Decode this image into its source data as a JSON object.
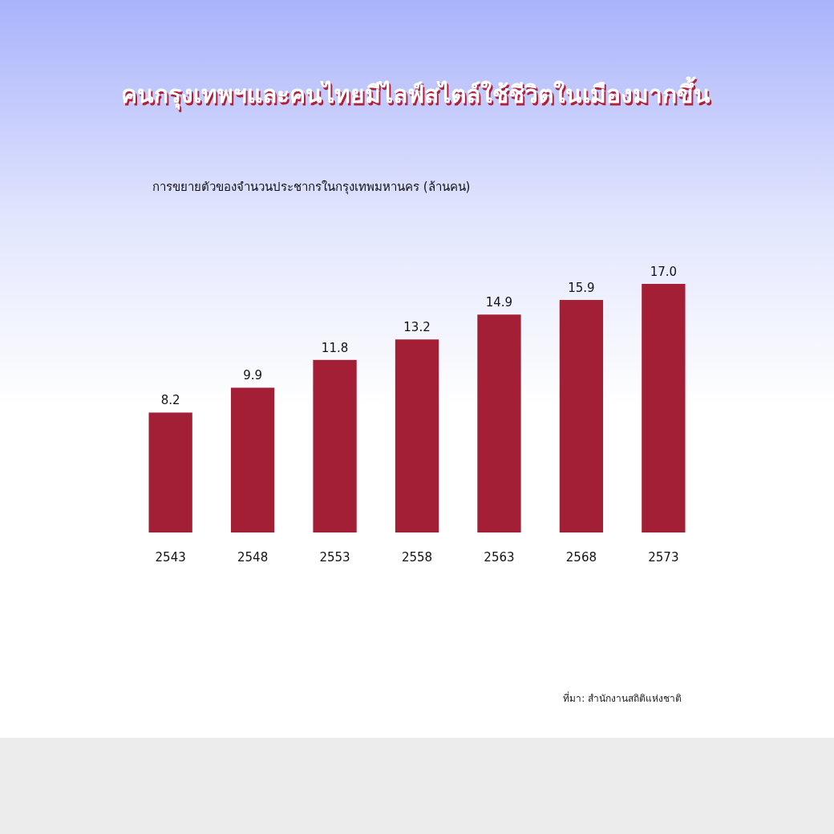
{
  "chart_data": {
    "type": "bar",
    "title": "คนกรุงเทพฯและคนไทยมีไลฟ์สไตล์ใช้ชีวิตในเมืองมากขึ้น",
    "subtitle": "การขยายตัวของจำนวนประชากรในกรุงเทพมหานคร (ล้านคน)",
    "categories": [
      "2543",
      "2548",
      "2553",
      "2558",
      "2563",
      "2568",
      "2573"
    ],
    "values": [
      8.2,
      9.9,
      11.8,
      13.2,
      14.9,
      15.9,
      17.0
    ],
    "value_labels": [
      "8.2",
      "9.9",
      "11.8",
      "13.2",
      "14.9",
      "15.9",
      "17.0"
    ],
    "color": "#a31f36",
    "annotations": [
      "ที่มา: สำนักงานสถิติแห่งชาติ"
    ]
  }
}
